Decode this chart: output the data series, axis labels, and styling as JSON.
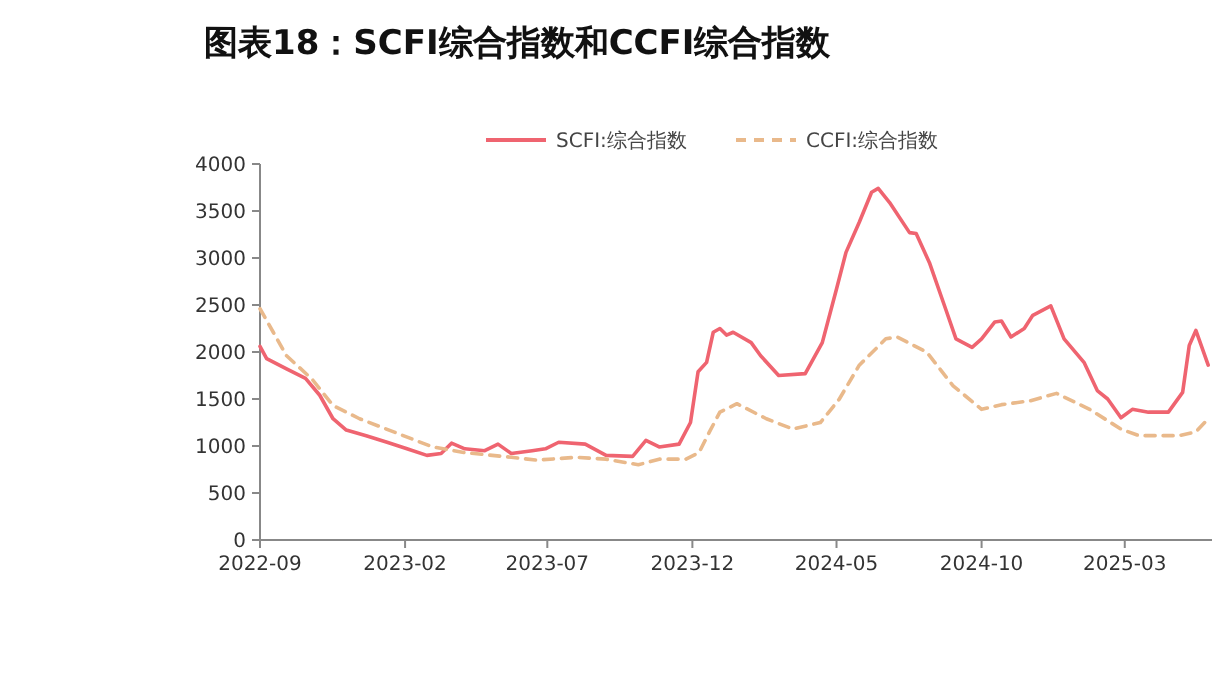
{
  "chart_data": {
    "type": "line",
    "title": "图表18：SCFI综合指数和CCFI综合指数",
    "legend": "top",
    "grid": false,
    "marker": "none",
    "xlim": [
      "2022-09",
      "2025-06"
    ],
    "xticks": [
      "2022-09",
      "2023-02",
      "2023-07",
      "2023-12",
      "2024-05",
      "2024-10",
      "2025-03"
    ],
    "ylim": [
      0,
      4000
    ],
    "yticks": [
      0,
      500,
      1000,
      1500,
      2000,
      2500,
      3000,
      3500,
      4000
    ],
    "series": [
      {
        "name": "SCFI:综合指数",
        "color": "#ef6470",
        "line_style": "solid",
        "x": [
          "2022-09-01",
          "2022-09-08",
          "2022-09-29",
          "2022-10-19",
          "2022-11-03",
          "2022-11-17",
          "2022-12-01",
          "2022-12-22",
          "2023-01-13",
          "2023-02-03",
          "2023-02-24",
          "2023-03-11",
          "2023-03-22",
          "2023-04-05",
          "2023-04-26",
          "2023-05-10",
          "2023-05-24",
          "2023-06-15",
          "2023-06-29",
          "2023-07-13",
          "2023-08-10",
          "2023-09-01",
          "2023-09-29",
          "2023-10-13",
          "2023-10-27",
          "2023-11-17",
          "2023-11-29",
          "2023-12-07",
          "2023-12-16",
          "2023-12-23",
          "2023-12-30",
          "2024-01-06",
          "2024-01-13",
          "2024-02-01",
          "2024-02-11",
          "2024-03-01",
          "2024-03-29",
          "2024-04-16",
          "2024-05-01",
          "2024-05-11",
          "2024-05-25",
          "2024-06-07",
          "2024-06-14",
          "2024-06-26",
          "2024-07-17",
          "2024-07-24",
          "2024-08-07",
          "2024-08-24",
          "2024-09-04",
          "2024-09-21",
          "2024-10-01",
          "2024-10-15",
          "2024-10-22",
          "2024-11-01",
          "2024-11-15",
          "2024-11-24",
          "2024-12-13",
          "2024-12-27",
          "2025-01-17",
          "2025-01-31",
          "2025-02-11",
          "2025-02-25",
          "2025-03-09",
          "2025-03-26",
          "2025-04-16",
          "2025-05-01",
          "2025-05-08",
          "2025-05-15",
          "2025-05-28"
        ],
        "values": [
          2060,
          1930,
          1820,
          1720,
          1540,
          1290,
          1170,
          1110,
          1040,
          970,
          900,
          920,
          1030,
          970,
          950,
          1020,
          920,
          950,
          970,
          1040,
          1020,
          900,
          890,
          1060,
          990,
          1020,
          1250,
          1790,
          1890,
          2210,
          2250,
          2180,
          2210,
          2100,
          1960,
          1750,
          1770,
          2100,
          2670,
          3060,
          3380,
          3700,
          3740,
          3590,
          3270,
          3260,
          2950,
          2460,
          2140,
          2050,
          2140,
          2320,
          2330,
          2160,
          2250,
          2390,
          2490,
          2140,
          1890,
          1590,
          1500,
          1300,
          1390,
          1360,
          1360,
          1570,
          2070,
          2230,
          1860
        ]
      },
      {
        "name": "CCFI:综合指数",
        "color": "#e9b98b",
        "line_style": "dashed",
        "x": [
          "2022-09-01",
          "2022-09-15",
          "2022-09-29",
          "2022-10-26",
          "2022-11-17",
          "2022-12-15",
          "2023-01-20",
          "2023-03-02",
          "2023-04-05",
          "2023-05-24",
          "2023-06-20",
          "2023-08-01",
          "2023-09-01",
          "2023-10-05",
          "2023-10-27",
          "2023-11-24",
          "2023-12-08",
          "2023-12-19",
          "2023-12-30",
          "2024-01-17",
          "2024-02-17",
          "2024-03-16",
          "2024-04-14",
          "2024-05-04",
          "2024-05-25",
          "2024-06-22",
          "2024-07-04",
          "2024-08-04",
          "2024-09-01",
          "2024-10-01",
          "2024-10-22",
          "2024-11-21",
          "2024-12-19",
          "2025-01-23",
          "2025-02-25",
          "2025-03-16",
          "2025-04-27",
          "2025-05-15",
          "2025-05-28"
        ],
        "values": [
          2460,
          2210,
          1960,
          1710,
          1430,
          1290,
          1150,
          990,
          930,
          880,
          850,
          880,
          860,
          800,
          860,
          860,
          930,
          1150,
          1360,
          1450,
          1290,
          1180,
          1250,
          1500,
          1860,
          2140,
          2160,
          2000,
          1640,
          1390,
          1440,
          1480,
          1560,
          1390,
          1180,
          1110,
          1110,
          1150,
          1290
        ]
      }
    ]
  }
}
